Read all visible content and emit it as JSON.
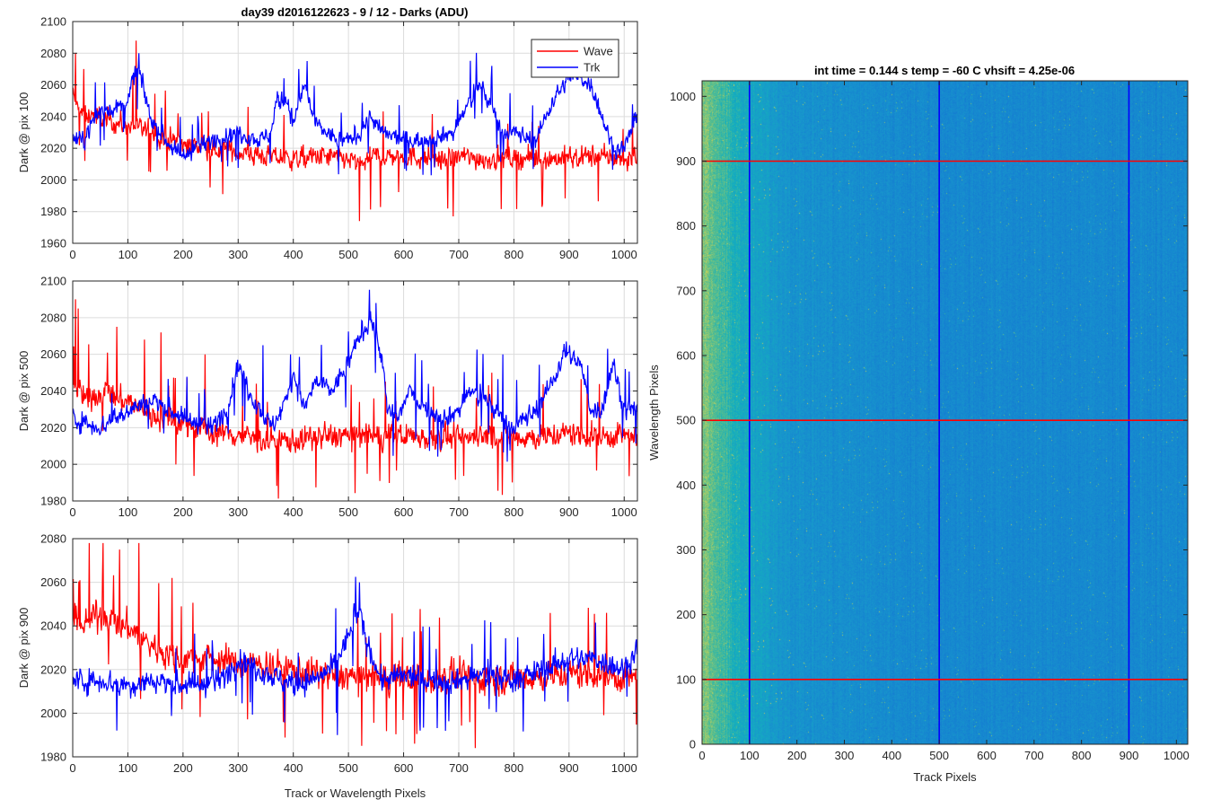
{
  "figure_title": "day39 d2016122623 - 9 / 12 - Darks (ADU)",
  "colors": {
    "wave": "#ff0000",
    "trk": "#0000ff",
    "grid": "#dcdcdc",
    "axis": "#262626",
    "map_low": "#1e8fcf",
    "map_mid": "#12a6c2",
    "map_high": "#b5d06a"
  },
  "chart_data": [
    {
      "type": "line",
      "ylabel": "Dark @ pix 100",
      "xlabel": "",
      "xlim": [
        0,
        1024
      ],
      "ylim": [
        1960,
        2100
      ],
      "xticks": [
        "0",
        "100",
        "200",
        "300",
        "400",
        "500",
        "600",
        "700",
        "800",
        "900",
        "1000"
      ],
      "yticks": [
        "1960",
        "1980",
        "2000",
        "2020",
        "2040",
        "2060",
        "2080",
        "2100"
      ],
      "grid": true,
      "legend": {
        "placement": "top-right",
        "entries": [
          "Wave",
          "Trk"
        ]
      },
      "series": [
        {
          "name": "Wave",
          "color": "#ff0000",
          "x": [
            0,
            10,
            20,
            40,
            60,
            80,
            100,
            120,
            140,
            160,
            180,
            200,
            250,
            300,
            350,
            400,
            450,
            500,
            520,
            550,
            600,
            650,
            690,
            700,
            750,
            800,
            850,
            900,
            950,
            1000,
            1024
          ],
          "y": [
            2055,
            2045,
            2040,
            2042,
            2038,
            2036,
            2035,
            2032,
            2030,
            2028,
            2025,
            2023,
            2020,
            2018,
            2015,
            2013,
            2015,
            2013,
            2010,
            2015,
            2015,
            2014,
            2012,
            2015,
            2013,
            2014,
            2013,
            2014,
            2015,
            2013,
            2015
          ],
          "spikes": [
            [
              115,
              2088
            ],
            [
              520,
              1974
            ],
            [
              690,
              1977
            ],
            [
              5,
              2080
            ],
            [
              20,
              2070
            ]
          ]
        },
        {
          "name": "Trk",
          "color": "#0000ff",
          "x": [
            0,
            20,
            40,
            60,
            80,
            100,
            110,
            120,
            130,
            140,
            160,
            180,
            200,
            250,
            300,
            340,
            360,
            370,
            390,
            400,
            410,
            420,
            440,
            480,
            500,
            520,
            540,
            560,
            600,
            640,
            690,
            720,
            740,
            760,
            780,
            800,
            840,
            870,
            900,
            920,
            940,
            960,
            980,
            1000,
            1024
          ],
          "y": [
            2025,
            2025,
            2040,
            2045,
            2045,
            2050,
            2065,
            2070,
            2055,
            2040,
            2030,
            2020,
            2015,
            2025,
            2030,
            2025,
            2030,
            2050,
            2050,
            2035,
            2050,
            2060,
            2035,
            2025,
            2025,
            2030,
            2040,
            2030,
            2025,
            2025,
            2030,
            2050,
            2060,
            2045,
            2030,
            2030,
            2025,
            2050,
            2065,
            2065,
            2060,
            2040,
            2020,
            2020,
            2040
          ],
          "spikes": [
            [
              120,
              2080
            ],
            [
              410,
              2070
            ],
            [
              760,
              2072
            ],
            [
              900,
              2070
            ]
          ]
        }
      ]
    },
    {
      "type": "line",
      "ylabel": "Dark @ pix 500",
      "xlabel": "",
      "xlim": [
        0,
        1024
      ],
      "ylim": [
        1980,
        2100
      ],
      "xticks": [
        "0",
        "100",
        "200",
        "300",
        "400",
        "500",
        "600",
        "700",
        "800",
        "900",
        "1000"
      ],
      "yticks": [
        "1980",
        "2000",
        "2020",
        "2040",
        "2060",
        "2080",
        "2100"
      ],
      "grid": true,
      "series": [
        {
          "name": "Wave",
          "color": "#ff0000",
          "x": [
            0,
            20,
            40,
            60,
            80,
            100,
            120,
            150,
            200,
            250,
            300,
            350,
            400,
            450,
            500,
            550,
            600,
            650,
            700,
            750,
            800,
            850,
            900,
            950,
            1000,
            1024
          ],
          "y": [
            2045,
            2035,
            2038,
            2040,
            2035,
            2035,
            2030,
            2027,
            2022,
            2018,
            2016,
            2013,
            2013,
            2015,
            2016,
            2015,
            2016,
            2015,
            2014,
            2016,
            2015,
            2015,
            2017,
            2015,
            2016,
            2015
          ],
          "spikes": [
            [
              5,
              2090
            ],
            [
              10,
              2085
            ],
            [
              80,
              2075
            ],
            [
              130,
              2068
            ],
            [
              160,
              2072
            ],
            [
              240,
              2060
            ],
            [
              760,
              2050
            ]
          ]
        },
        {
          "name": "Trk",
          "color": "#0000ff",
          "x": [
            0,
            50,
            100,
            150,
            200,
            250,
            280,
            300,
            320,
            340,
            360,
            380,
            400,
            420,
            440,
            470,
            500,
            520,
            540,
            560,
            570,
            590,
            610,
            640,
            680,
            700,
            720,
            750,
            780,
            800,
            840,
            870,
            890,
            900,
            920,
            940,
            960,
            980,
            1000,
            1024
          ],
          "y": [
            2025,
            2020,
            2030,
            2035,
            2025,
            2020,
            2030,
            2055,
            2040,
            2030,
            2020,
            2030,
            2050,
            2030,
            2045,
            2040,
            2055,
            2070,
            2080,
            2060,
            2030,
            2025,
            2040,
            2030,
            2025,
            2030,
            2040,
            2035,
            2025,
            2020,
            2030,
            2045,
            2060,
            2060,
            2055,
            2030,
            2030,
            2055,
            2030,
            2030
          ],
          "spikes": [
            [
              550,
              2088
            ],
            [
              345,
              2065
            ],
            [
              395,
              2060
            ],
            [
              780,
              2060
            ],
            [
              895,
              2067
            ],
            [
              970,
              2063
            ]
          ]
        }
      ]
    },
    {
      "type": "line",
      "ylabel": "Dark @ pix 900",
      "xlabel": "Track or Wavelength Pixels",
      "xlim": [
        0,
        1024
      ],
      "ylim": [
        1980,
        2080
      ],
      "xticks": [
        "0",
        "100",
        "200",
        "300",
        "400",
        "500",
        "600",
        "700",
        "800",
        "900",
        "1000"
      ],
      "yticks": [
        "1980",
        "2000",
        "2020",
        "2040",
        "2060",
        "2080"
      ],
      "grid": true,
      "series": [
        {
          "name": "Wave",
          "color": "#ff0000",
          "x": [
            0,
            20,
            40,
            60,
            80,
            100,
            120,
            150,
            200,
            250,
            300,
            350,
            400,
            450,
            500,
            550,
            600,
            650,
            700,
            750,
            800,
            850,
            900,
            950,
            1000,
            1024
          ],
          "y": [
            2042,
            2040,
            2045,
            2045,
            2040,
            2040,
            2035,
            2030,
            2025,
            2025,
            2023,
            2022,
            2020,
            2018,
            2017,
            2016,
            2016,
            2016,
            2017,
            2016,
            2016,
            2017,
            2018,
            2018,
            2016,
            2017
          ],
          "spikes": [
            [
              30,
              2078
            ],
            [
              55,
              2078
            ],
            [
              85,
              2075
            ],
            [
              120,
              2078
            ],
            [
              180,
              2062
            ],
            [
              620,
              1986
            ],
            [
              730,
              1984
            ]
          ]
        },
        {
          "name": "Trk",
          "color": "#0000ff",
          "x": [
            0,
            50,
            100,
            150,
            200,
            250,
            280,
            300,
            340,
            380,
            400,
            430,
            470,
            500,
            510,
            520,
            530,
            560,
            600,
            650,
            700,
            750,
            800,
            850,
            900,
            950,
            1000,
            1024
          ],
          "y": [
            2015,
            2015,
            2013,
            2015,
            2013,
            2013,
            2018,
            2025,
            2020,
            2015,
            2013,
            2015,
            2020,
            2035,
            2045,
            2045,
            2035,
            2015,
            2017,
            2015,
            2015,
            2018,
            2015,
            2020,
            2025,
            2025,
            2020,
            2030
          ],
          "spikes": [
            [
              520,
              2060
            ],
            [
              80,
              1992
            ],
            [
              480,
              1990
            ],
            [
              630,
              1992
            ]
          ]
        }
      ]
    },
    {
      "type": "heatmap",
      "title": "int time = 0.144 s   temp = -60 C   vhsift = 4.25e-06",
      "xlabel": "Track Pixels",
      "ylabel": "Wavelength Pixels",
      "xlim": [
        0,
        1024
      ],
      "ylim": [
        0,
        1024
      ],
      "xticks": [
        "0",
        "100",
        "200",
        "300",
        "400",
        "500",
        "600",
        "700",
        "800",
        "900",
        "1000"
      ],
      "yticks": [
        "0",
        "100",
        "200",
        "300",
        "400",
        "500",
        "600",
        "700",
        "800",
        "900",
        "1000"
      ],
      "vertical_lines": {
        "color": "#0000ff",
        "x": [
          100,
          500,
          900
        ]
      },
      "horizontal_lines": {
        "color": "#ff0000",
        "y": [
          100,
          500,
          900
        ]
      },
      "colormap": "parula",
      "gradient": [
        [
          0,
          2045
        ],
        [
          100,
          2030
        ],
        [
          200,
          2022
        ],
        [
          500,
          2018
        ],
        [
          1024,
          2018
        ]
      ]
    }
  ]
}
